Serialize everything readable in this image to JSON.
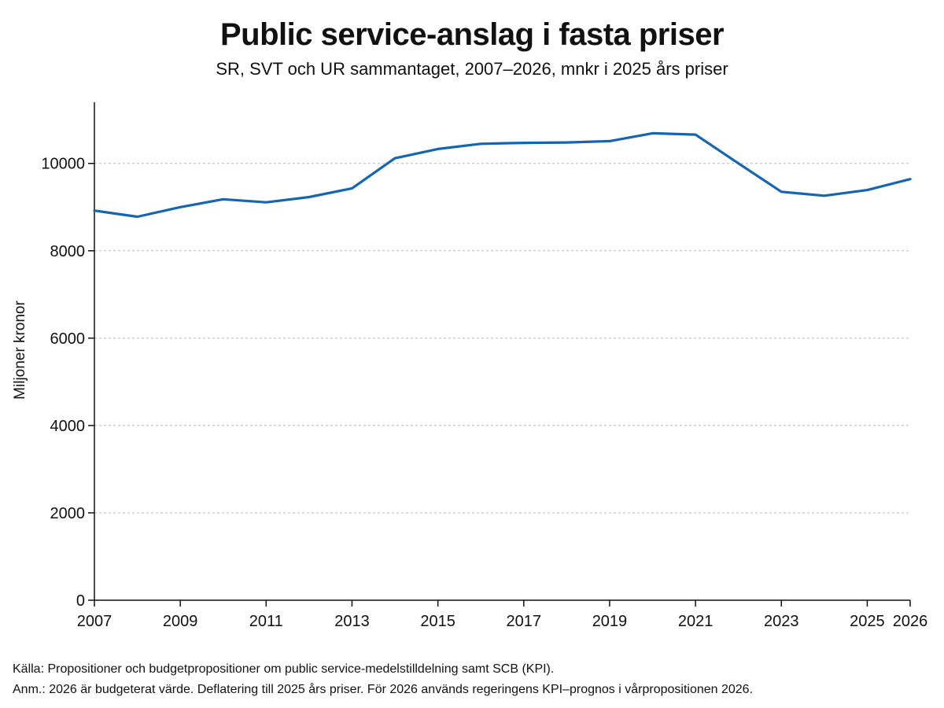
{
  "header": {
    "title": "Public service-anslag i fasta priser",
    "subtitle": "SR, SVT och UR sammantaget, 2007–2026, mnkr i 2025 års priser"
  },
  "chart_data": {
    "type": "line",
    "title": "Public service-anslag i fasta priser",
    "subtitle": "SR, SVT och UR sammantaget, 2007–2026, mnkr i 2025 års priser",
    "xlabel": "",
    "ylabel": "Miljoner kronor",
    "xlim": [
      2007,
      2026
    ],
    "ylim": [
      0,
      11400
    ],
    "x_ticks": [
      2007,
      2009,
      2011,
      2013,
      2015,
      2017,
      2019,
      2021,
      2023,
      2025,
      2026
    ],
    "y_ticks": [
      0,
      2000,
      4000,
      6000,
      8000,
      10000
    ],
    "grid": "horizontal-dashed",
    "series": [
      {
        "color": "#1565b0",
        "x": [
          2007,
          2008,
          2009,
          2010,
          2011,
          2012,
          2013,
          2014,
          2015,
          2016,
          2017,
          2018,
          2019,
          2020,
          2021,
          2022,
          2023,
          2024,
          2025,
          2026
        ],
        "y": [
          8920,
          8780,
          9000,
          9180,
          9110,
          9230,
          9430,
          10120,
          10330,
          10450,
          10470,
          10480,
          10510,
          10690,
          10660,
          10000,
          9350,
          9260,
          9390,
          9640
        ]
      }
    ]
  },
  "footer": {
    "source": "Källa: Propositioner och budgetpropositioner om public service-medelstilldelning samt SCB (KPI).",
    "note": "Anm.: 2026 är budgeterat värde. Deflatering till 2025 års priser. För 2026 används regeringens KPI–prognos i vårpropositionen 2026."
  }
}
